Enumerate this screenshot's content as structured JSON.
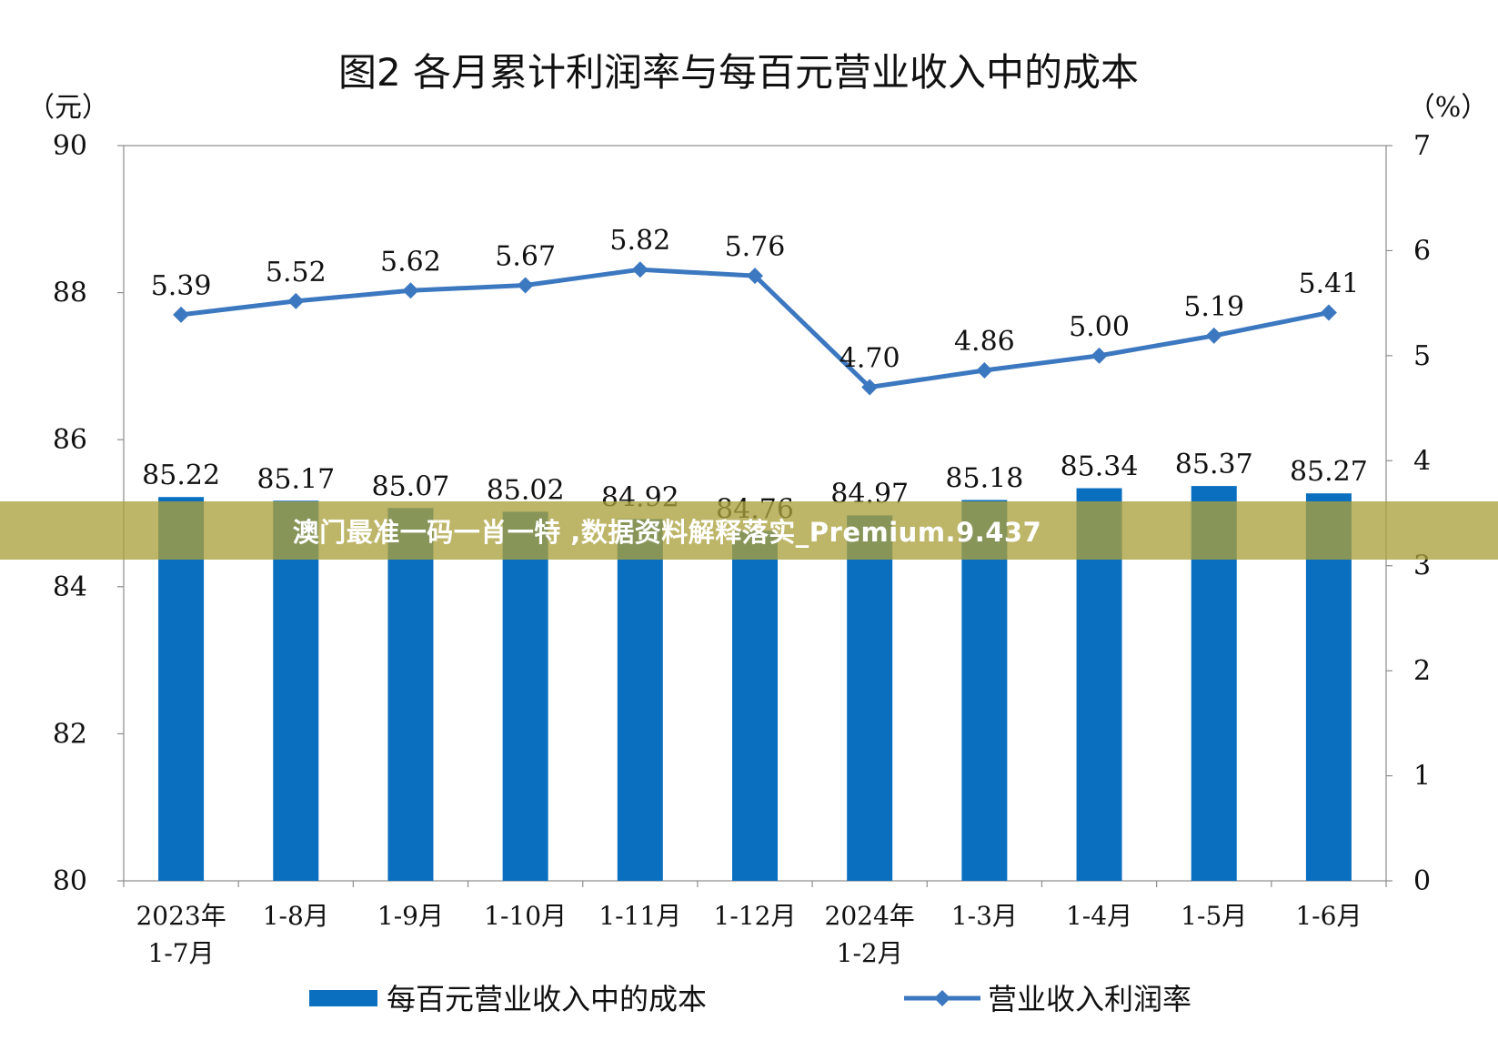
{
  "banner": {
    "text": "澳门最准一码一肖一特  ,数据资料解释落实_Premium.9.437"
  },
  "chart_data": {
    "type": "bar",
    "title": "图2  各月累计利润率与每百元营业收入中的成本",
    "left_unit": "（元）",
    "right_unit": "（%）",
    "categories": [
      [
        "2023年",
        "1-7月"
      ],
      [
        "1-8月"
      ],
      [
        "1-9月"
      ],
      [
        "1-10月"
      ],
      [
        "1-11月"
      ],
      [
        "1-12月"
      ],
      [
        "2024年",
        "1-2月"
      ],
      [
        "1-3月"
      ],
      [
        "1-4月"
      ],
      [
        "1-5月"
      ],
      [
        "1-6月"
      ]
    ],
    "y_left": {
      "min": 80,
      "max": 90,
      "ticks": [
        80,
        82,
        84,
        86,
        88,
        90
      ]
    },
    "y_right": {
      "min": 0,
      "max": 7,
      "ticks": [
        0,
        1,
        2,
        3,
        4,
        5,
        6,
        7
      ]
    },
    "series": [
      {
        "name": "每百元营业收入中的成本",
        "type": "bar",
        "axis": "left",
        "color": "#0a6fbf",
        "values": [
          85.22,
          85.17,
          85.07,
          85.02,
          84.92,
          84.76,
          84.97,
          85.18,
          85.34,
          85.37,
          85.27
        ],
        "labels": [
          "85.22",
          "85.17",
          "85.07",
          "85.02",
          "84.92",
          "84.76",
          "84.97",
          "85.18",
          "85.34",
          "85.37",
          "85.27"
        ]
      },
      {
        "name": "营业收入利润率",
        "type": "line",
        "axis": "right",
        "color": "#3c78c0",
        "marker": "diamond",
        "values": [
          5.39,
          5.52,
          5.62,
          5.67,
          5.82,
          5.76,
          4.7,
          4.86,
          5.0,
          5.19,
          5.41
        ],
        "labels": [
          "5.39",
          "5.52",
          "5.62",
          "5.67",
          "5.82",
          "5.76",
          "4.70",
          "4.86",
          "5.00",
          "5.19",
          "5.41"
        ]
      }
    ],
    "legend_position": "bottom-center",
    "grid": false
  }
}
